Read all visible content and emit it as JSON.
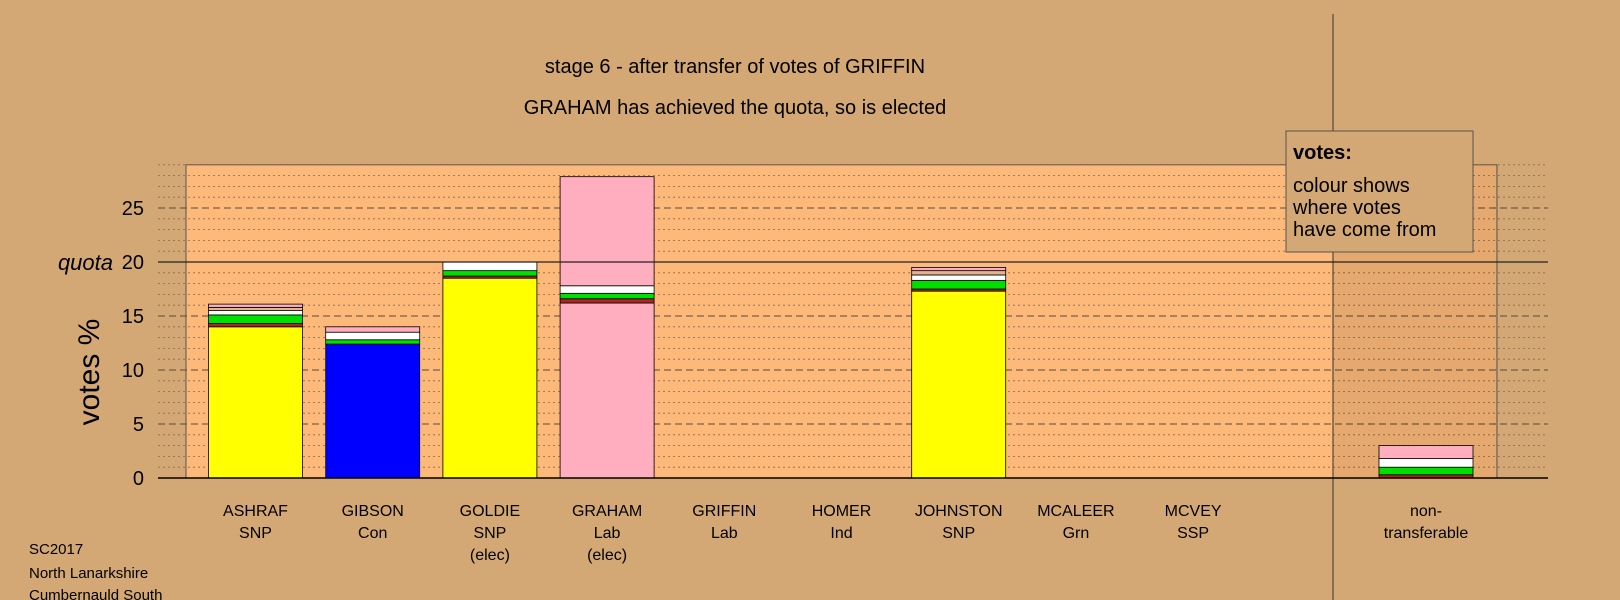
{
  "title": {
    "line1": "stage 6 - after transfer of votes of GRIFFIN",
    "line2": "GRAHAM has achieved the quota, so is elected"
  },
  "colors": {
    "page_bg": "#d4a874",
    "plot_bg": "#fcb97a",
    "SNP": "#ffff00",
    "Con": "#0000ff",
    "Lab": "#ffaec0",
    "Grn": "#00e000",
    "Ind": "#ffffff",
    "SSP": "#e2b48c",
    "LabTransfer": "#b22222",
    "nontransferable": "#ffaec0"
  },
  "legend": {
    "heading": "votes:",
    "lines": [
      "colour shows",
      "where votes",
      "have come from"
    ]
  },
  "footer": [
    "SC2017",
    "North Lanarkshire",
    "Cumbernauld South"
  ],
  "chart_data": {
    "type": "bar",
    "stacked": true,
    "ylabel": "votes %",
    "ylim": [
      0,
      29
    ],
    "yticks": [
      0,
      5,
      10,
      15,
      20,
      25
    ],
    "quota": 20,
    "quota_label": "quota",
    "grid": true,
    "legend_position": "top-right",
    "categories": [
      {
        "lines": [
          "ASHRAF",
          "SNP"
        ],
        "segments": [
          {
            "from": "SNP",
            "value": 14.0
          },
          {
            "from": "LabTransfer",
            "value": 0.3
          },
          {
            "from": "Grn",
            "value": 0.8
          },
          {
            "from": "Ind",
            "value": 0.4
          },
          {
            "from": "SSP",
            "value": 0.3
          },
          {
            "from": "Lab",
            "value": 0.3
          }
        ]
      },
      {
        "lines": [
          "GIBSON",
          "Con"
        ],
        "segments": [
          {
            "from": "Con",
            "value": 12.4
          },
          {
            "from": "Grn",
            "value": 0.4
          },
          {
            "from": "Ind",
            "value": 0.7
          },
          {
            "from": "Lab",
            "value": 0.5
          }
        ]
      },
      {
        "lines": [
          "GOLDIE",
          "SNP",
          "(elec)"
        ],
        "segments": [
          {
            "from": "SNP",
            "value": 18.5
          },
          {
            "from": "LabTransfer",
            "value": 0.2
          },
          {
            "from": "Grn",
            "value": 0.5
          },
          {
            "from": "Ind",
            "value": 0.8
          }
        ]
      },
      {
        "lines": [
          "GRAHAM",
          "Lab",
          "(elec)"
        ],
        "segments": [
          {
            "from": "Lab",
            "value": 16.2
          },
          {
            "from": "LabTransfer",
            "value": 0.4
          },
          {
            "from": "Grn",
            "value": 0.5
          },
          {
            "from": "Ind",
            "value": 0.7
          },
          {
            "from": "Lab",
            "value": 10.1
          }
        ]
      },
      {
        "lines": [
          "GRIFFIN",
          "Lab"
        ],
        "segments": []
      },
      {
        "lines": [
          "HOMER",
          "Ind"
        ],
        "segments": []
      },
      {
        "lines": [
          "JOHNSTON",
          "SNP"
        ],
        "segments": [
          {
            "from": "SNP",
            "value": 17.3
          },
          {
            "from": "LabTransfer",
            "value": 0.2
          },
          {
            "from": "Grn",
            "value": 0.8
          },
          {
            "from": "Ind",
            "value": 0.5
          },
          {
            "from": "SSP",
            "value": 0.4
          },
          {
            "from": "Lab",
            "value": 0.3
          }
        ]
      },
      {
        "lines": [
          "MCALEER",
          "Grn"
        ],
        "segments": []
      },
      {
        "lines": [
          "MCVEY",
          "SSP"
        ],
        "segments": []
      }
    ],
    "nontransferable": {
      "lines": [
        "non-",
        "transferable"
      ],
      "segments": [
        {
          "from": "LabTransfer",
          "value": 0.3
        },
        {
          "from": "Grn",
          "value": 0.7
        },
        {
          "from": "Ind",
          "value": 0.8
        },
        {
          "from": "nontransferable",
          "value": 1.2
        }
      ]
    }
  }
}
